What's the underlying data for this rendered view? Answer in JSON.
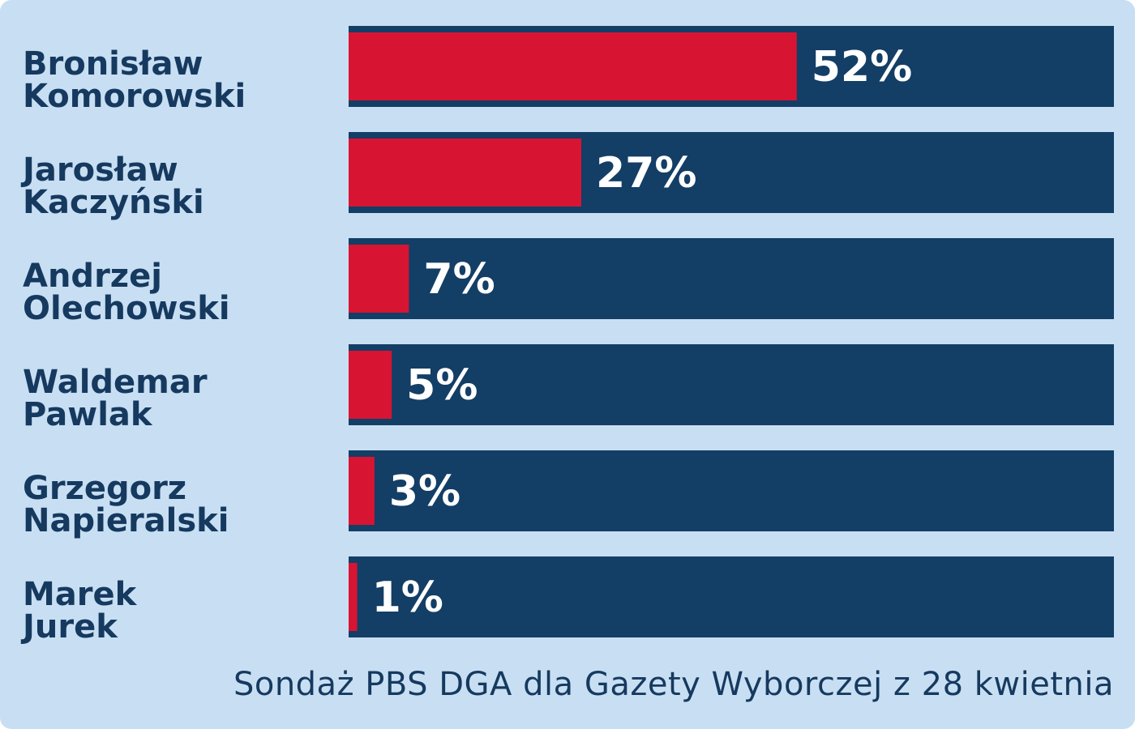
{
  "colors": {
    "background": "#c8dff3",
    "track": "#133e66",
    "bar": "#d81433",
    "label_text": "#16395f",
    "value_text": "#ffffff"
  },
  "chart_data": {
    "type": "bar",
    "orientation": "horizontal",
    "categories": [
      [
        "Bronisław",
        "Komorowski"
      ],
      [
        "Jarosław",
        "Kaczyński"
      ],
      [
        "Andrzej",
        "Olechowski"
      ],
      [
        "Waldemar",
        "Pawlak"
      ],
      [
        "Grzegorz",
        "Napieralski"
      ],
      [
        "Marek",
        "Jurek"
      ]
    ],
    "values": [
      52,
      27,
      7,
      5,
      3,
      1
    ],
    "value_labels": [
      "52%",
      "27%",
      "7%",
      "5%",
      "3%",
      "1%"
    ],
    "xlim": [
      0,
      100
    ],
    "grid": false,
    "legend": "none"
  },
  "source": "Sondaż PBS DGA dla Gazety Wyborczej z 28 kwietnia"
}
